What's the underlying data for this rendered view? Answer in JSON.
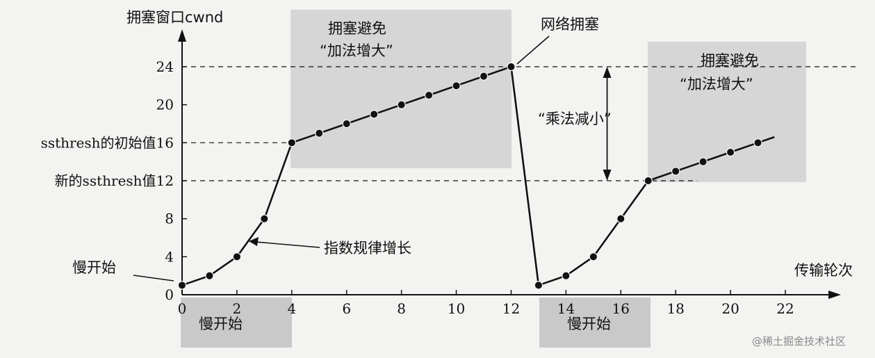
{
  "chart_data": {
    "type": "line",
    "ylabel": "拥塞窗口cwnd",
    "xlabel": "传输轮次",
    "xlim": [
      0,
      22
    ],
    "ylim": [
      0,
      24
    ],
    "x_ticks": [
      0,
      2,
      4,
      6,
      8,
      10,
      12,
      14,
      16,
      18,
      20,
      22
    ],
    "y_ticks": [
      0,
      4,
      8,
      12,
      16,
      20,
      24
    ],
    "y_tick_labels": {
      "0": "0",
      "4": "4",
      "8": "8",
      "12": "新的ssthresh值12",
      "16": "ssthresh的初始值16",
      "20": "20",
      "24": "24"
    },
    "series": [
      {
        "x": [
          0,
          1,
          2,
          3,
          4,
          5,
          6,
          7,
          8,
          9,
          10,
          11,
          12,
          13,
          14,
          15,
          16,
          17,
          18,
          19,
          20,
          21
        ],
        "y": [
          1,
          2,
          4,
          8,
          16,
          17,
          18,
          19,
          20,
          21,
          22,
          23,
          24,
          1,
          2,
          4,
          8,
          12,
          13,
          14,
          15,
          16
        ]
      }
    ],
    "annotations": {
      "slow_start_start": "慢开始",
      "exponential": "指数规律增长",
      "congestion": "网络拥塞",
      "mult_decrease": "“乘法减小”",
      "ca1_line1": "拥塞避免",
      "ca1_line2": "“加法增大”",
      "ca2_line1": "拥塞避免",
      "ca2_line2": "“加法增大”",
      "band1": "慢开始",
      "band2": "慢开始"
    }
  },
  "watermark": "@稀土掘金技术社区"
}
